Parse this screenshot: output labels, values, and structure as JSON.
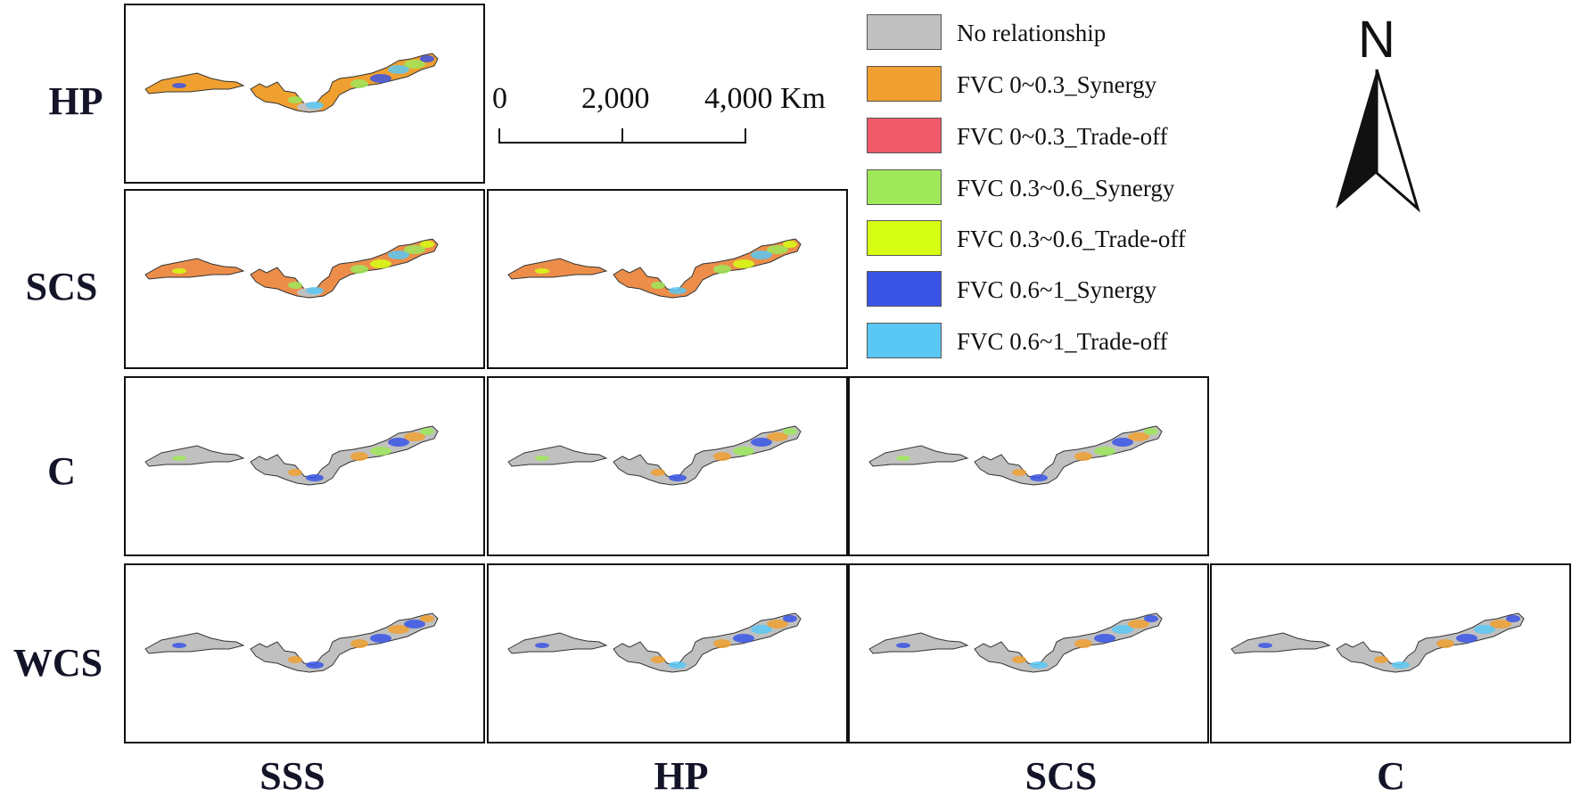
{
  "row_labels": [
    "HP",
    "SCS",
    "C",
    "WCS"
  ],
  "column_labels": [
    "SSS",
    "HP",
    "SCS",
    "C"
  ],
  "legend": [
    {
      "label": "No relationship",
      "color": "#c0c0c0"
    },
    {
      "label": "FVC 0~0.3_Synergy",
      "color": "#f0a030"
    },
    {
      "label": "FVC 0~0.3_Trade-off",
      "color": "#f05a6a"
    },
    {
      "label": "FVC 0.3~0.6_Synergy",
      "color": "#9ee85a"
    },
    {
      "label": "FVC 0.3~0.6_Trade-off",
      "color": "#d6ff14"
    },
    {
      "label": "FVC 0.6~1_Synergy",
      "color": "#3a55e6"
    },
    {
      "label": "FVC 0.6~1_Trade-off",
      "color": "#5ac8f5"
    }
  ],
  "scale_bar": {
    "labels": [
      "0",
      "2,000",
      "4,000 Km"
    ]
  },
  "north_arrow": {
    "label": "N"
  },
  "panels": [
    {
      "row": "HP",
      "col": "SSS",
      "base": "#f0a030",
      "accents": [
        "#9ee85a",
        "#3a55e6",
        "#5ac8f5"
      ],
      "grey_patch": true
    },
    {
      "row": "SCS",
      "col": "SSS",
      "base": "#ec8e4a",
      "accents": [
        "#9ee85a",
        "#d6ff14",
        "#5ac8f5"
      ],
      "grey_patch": true
    },
    {
      "row": "SCS",
      "col": "HP",
      "base": "#ec8e4a",
      "accents": [
        "#9ee85a",
        "#d6ff14",
        "#5ac8f5"
      ],
      "grey_patch": false
    },
    {
      "row": "C",
      "col": "SSS",
      "base": "#c0c0c0",
      "accents": [
        "#f0a030",
        "#9ee85a",
        "#3a55e6"
      ],
      "grey_patch": false
    },
    {
      "row": "C",
      "col": "HP",
      "base": "#c0c0c0",
      "accents": [
        "#f0a030",
        "#9ee85a",
        "#3a55e6"
      ],
      "grey_patch": false
    },
    {
      "row": "C",
      "col": "SCS",
      "base": "#c0c0c0",
      "accents": [
        "#f0a030",
        "#9ee85a",
        "#3a55e6"
      ],
      "grey_patch": false
    },
    {
      "row": "WCS",
      "col": "SSS",
      "base": "#c0c0c0",
      "accents": [
        "#f0a030",
        "#3a55e6"
      ],
      "grey_patch": false
    },
    {
      "row": "WCS",
      "col": "HP",
      "base": "#c0c0c0",
      "accents": [
        "#f0a030",
        "#3a55e6",
        "#5ac8f5"
      ],
      "grey_patch": false
    },
    {
      "row": "WCS",
      "col": "SCS",
      "base": "#c0c0c0",
      "accents": [
        "#f0a030",
        "#3a55e6",
        "#5ac8f5"
      ],
      "grey_patch": false
    },
    {
      "row": "WCS",
      "col": "C",
      "base": "#c0c0c0",
      "accents": [
        "#f0a030",
        "#3a55e6",
        "#5ac8f5"
      ],
      "grey_patch": false
    }
  ]
}
